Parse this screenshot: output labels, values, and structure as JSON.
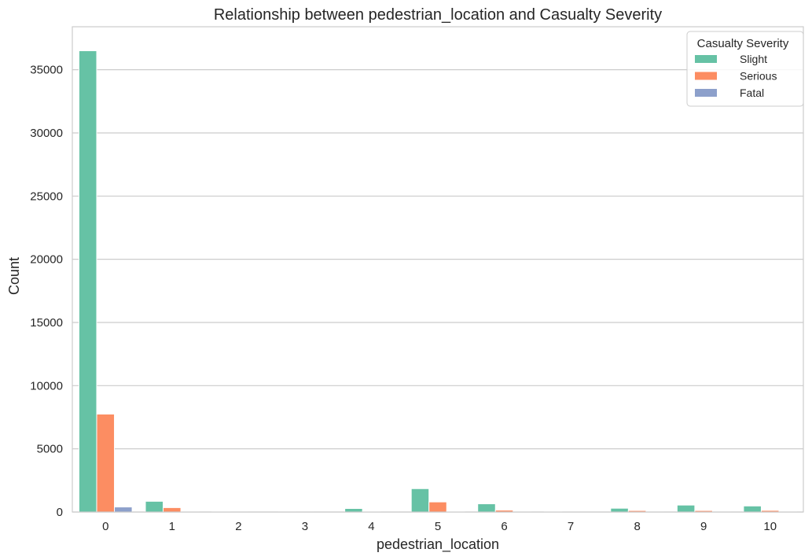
{
  "chart_data": {
    "type": "bar",
    "title": "Relationship between pedestrian_location and Casualty Severity",
    "xlabel": "pedestrian_location",
    "ylabel": "Count",
    "categories": [
      "0",
      "1",
      "2",
      "3",
      "4",
      "5",
      "6",
      "7",
      "8",
      "9",
      "10"
    ],
    "ylim": [
      0,
      38400
    ],
    "yticks": [
      0,
      5000,
      10000,
      15000,
      20000,
      25000,
      30000,
      35000
    ],
    "grid": "horizontal",
    "legend_title": "Casualty Severity",
    "legend_position": "top-right",
    "series": [
      {
        "name": "Slight",
        "color": "#66c2a5",
        "values": [
          36500,
          850,
          30,
          20,
          280,
          1850,
          650,
          30,
          300,
          550,
          480
        ]
      },
      {
        "name": "Serious",
        "color": "#fc8d62",
        "values": [
          7750,
          350,
          10,
          5,
          50,
          800,
          150,
          10,
          120,
          120,
          130
        ]
      },
      {
        "name": "Fatal",
        "color": "#8da0cb",
        "values": [
          400,
          20,
          2,
          1,
          5,
          60,
          15,
          2,
          10,
          10,
          12
        ]
      }
    ]
  }
}
